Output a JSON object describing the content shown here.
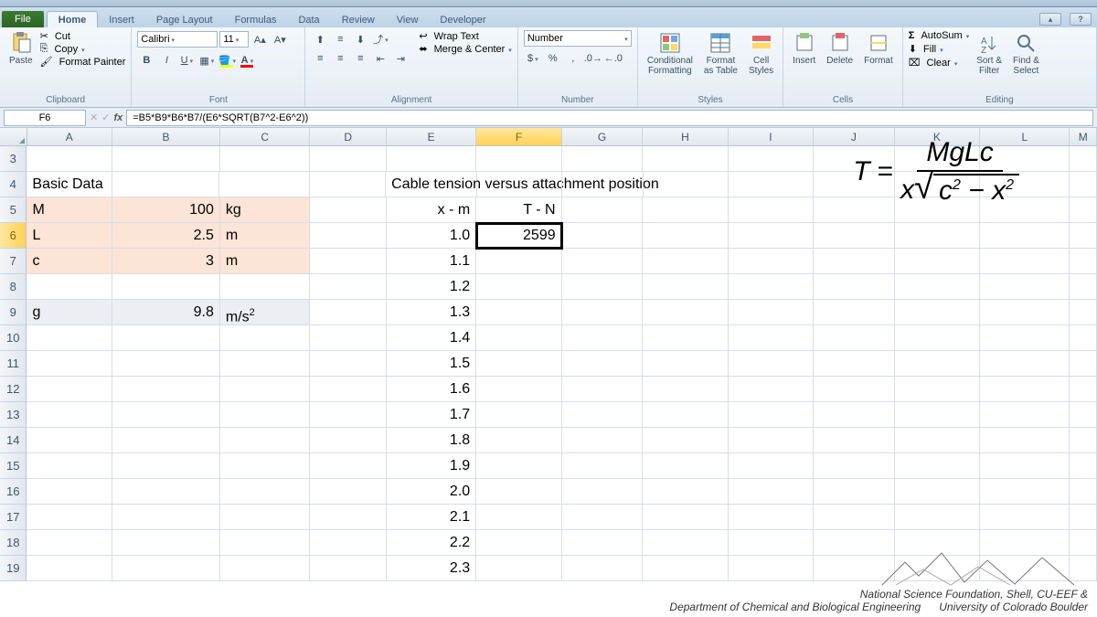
{
  "tabs": {
    "file": "File",
    "list": [
      "Home",
      "Insert",
      "Page Layout",
      "Formulas",
      "Data",
      "Review",
      "View",
      "Developer"
    ],
    "active": 0
  },
  "ribbon": {
    "clipboard": {
      "paste": "Paste",
      "cut": "Cut",
      "copy": "Copy",
      "painter": "Format Painter",
      "label": "Clipboard"
    },
    "font": {
      "name": "Calibri",
      "size": "11",
      "label": "Font"
    },
    "alignment": {
      "wrap": "Wrap Text",
      "merge": "Merge & Center",
      "label": "Alignment"
    },
    "number": {
      "format": "Number",
      "label": "Number"
    },
    "styles": {
      "cond": "Conditional\nFormatting",
      "table": "Format\nas Table",
      "cell": "Cell\nStyles",
      "label": "Styles"
    },
    "cells": {
      "insert": "Insert",
      "delete": "Delete",
      "format": "Format",
      "label": "Cells"
    },
    "editing": {
      "sum": "AutoSum",
      "fill": "Fill",
      "clear": "Clear",
      "sort": "Sort &\nFilter",
      "find": "Find &\nSelect",
      "label": "Editing"
    }
  },
  "formula_bar": {
    "cell_ref": "F6",
    "formula": "=B5*B9*B6*B7/(E6*SQRT(B7^2-E6^2))"
  },
  "columns": [
    "A",
    "B",
    "C",
    "D",
    "E",
    "F",
    "G",
    "H",
    "I",
    "J",
    "K",
    "L",
    "M"
  ],
  "active_col": "F",
  "active_row": 6,
  "sheet": {
    "A4": "Basic Data",
    "A5": "M",
    "A6": "L",
    "A7": "c",
    "A9": "g",
    "B5": "100",
    "C5": "kg",
    "B6": "2.5",
    "C6": "m",
    "B7": "3",
    "C7": "m",
    "B9": "9.8",
    "C9": "m/s²",
    "E4": "Cable tension versus attachment position",
    "E5": "x - m",
    "F5": "T - N",
    "E6": "1.0",
    "F6": "2599",
    "E7": "1.1",
    "E8": "1.2",
    "E9": "1.3",
    "E10": "1.4",
    "E11": "1.5",
    "E12": "1.6",
    "E13": "1.7",
    "E14": "1.8",
    "E15": "1.9",
    "E16": "2.0",
    "E17": "2.1",
    "E18": "2.2",
    "E19": "2.3"
  },
  "row_numbers": [
    3,
    4,
    5,
    6,
    7,
    8,
    9,
    10,
    11,
    12,
    13,
    14,
    15,
    16,
    17,
    18,
    19
  ],
  "equation": {
    "lhs": "T",
    "num": "MgLc",
    "den_x": "x",
    "rad": "c² − x²"
  },
  "credit": {
    "line1": "National Science Foundation, Shell, CU-EEF &",
    "line2": "Department of Chemical and Biological Engineering",
    "line3": "University of Colorado Boulder"
  },
  "styling": {
    "highlight_fill": "#fce4d6",
    "highlight_fill2": "#ebeff3",
    "grid_border": "#d8dee6",
    "header_grad_top": "#f3f6f9",
    "header_grad_bot": "#e1e7ee",
    "active_header_top": "#ffe79e",
    "active_header_bot": "#ffd256",
    "selection_outline": "#000000",
    "cell_font_size": 16,
    "cell_font": "Calibri",
    "ribbon_bg_top": "#f4f8fb",
    "ribbon_bg_bot": "#e4ecf4"
  }
}
